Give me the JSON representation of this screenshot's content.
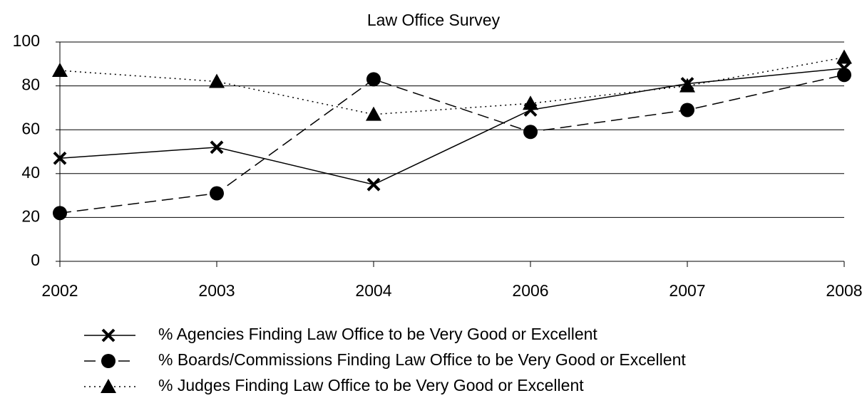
{
  "chart_data": {
    "type": "line",
    "title": "Law Office Survey",
    "categories": [
      "2002",
      "2003",
      "2004",
      "2006",
      "2007",
      "2008"
    ],
    "series": [
      {
        "name": "% Agencies Finding Law Office to be Very Good or Excellent",
        "color": "#000000",
        "line_style": "solid",
        "marker": "x",
        "values": [
          47,
          52,
          35,
          69,
          81,
          88
        ]
      },
      {
        "name": "% Boards/Commissions Finding Law Office to be Very Good or Excellent",
        "color": "#000000",
        "line_style": "dashed",
        "marker": "circle",
        "values": [
          22,
          31,
          83,
          59,
          69,
          85
        ]
      },
      {
        "name": "% Judges Finding Law Office to be Very Good or Excellent",
        "color": "#000000",
        "line_style": "dotted",
        "marker": "triangle",
        "values": [
          87,
          82,
          67,
          72,
          80,
          93
        ]
      }
    ],
    "ylim": [
      0,
      100
    ],
    "yticks": [
      0,
      20,
      40,
      60,
      80,
      100
    ],
    "grid": true,
    "legend": "bottom"
  }
}
